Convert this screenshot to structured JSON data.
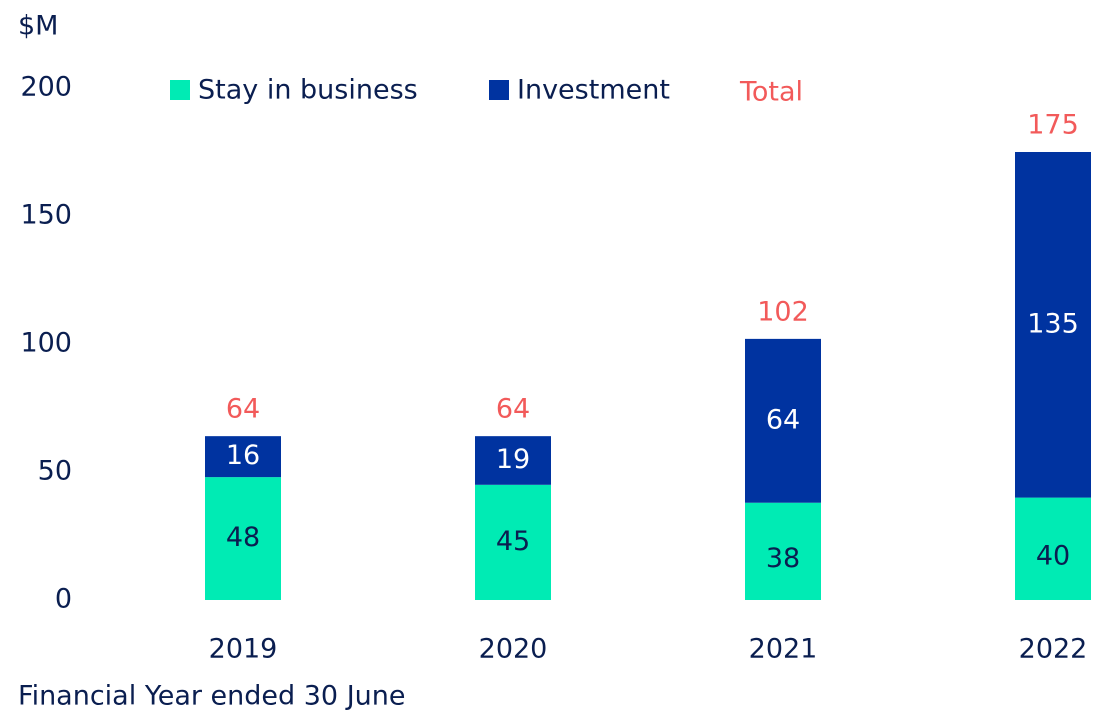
{
  "chart_data": {
    "type": "stacked_bar",
    "y_label": "$M",
    "x_label": "Financial Year ended 30 June",
    "categories": [
      "2019",
      "2020",
      "2021",
      "2022"
    ],
    "series": [
      {
        "name": "Stay in business",
        "color": "#00ebb4",
        "values": [
          48,
          45,
          38,
          40
        ]
      },
      {
        "name": "Investment",
        "color": "#0033a0",
        "values": [
          16,
          19,
          64,
          135
        ]
      }
    ],
    "totals": {
      "name": "Total",
      "color": "#f25a5a",
      "values": [
        64,
        64,
        102,
        175
      ]
    },
    "ylim": [
      0,
      200
    ],
    "yticks": [
      0,
      50,
      100,
      150,
      200
    ],
    "grid": false
  }
}
